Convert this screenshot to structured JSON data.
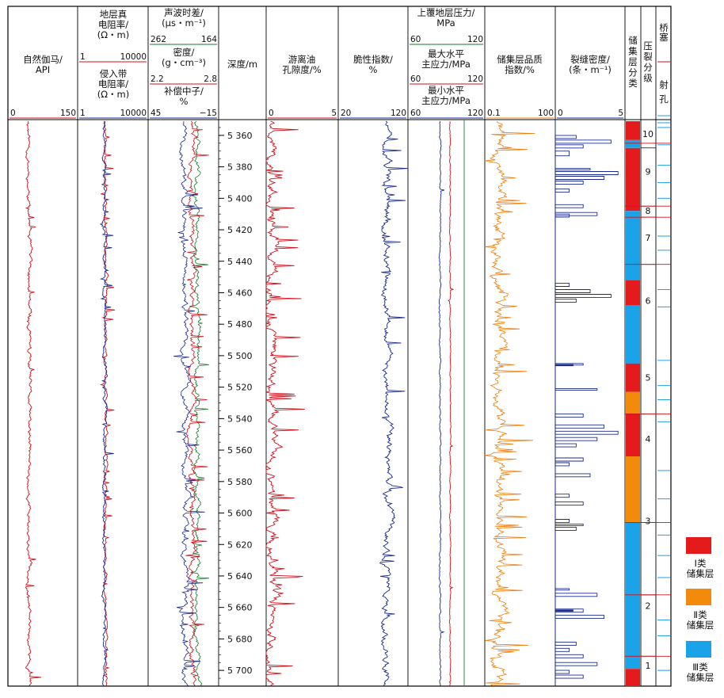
{
  "chart_data": {
    "type": "line",
    "depth_axis": {
      "label": "深度/m",
      "min": 5350,
      "max": 5710,
      "ticks": [
        5360,
        5380,
        5400,
        5420,
        5440,
        5460,
        5480,
        5500,
        5520,
        5540,
        5560,
        5580,
        5600,
        5620,
        5640,
        5660,
        5680,
        5700
      ],
      "tick_labels": [
        "5 360",
        "5 380",
        "5 400",
        "5 420",
        "5 440",
        "5 460",
        "5 480",
        "5 500",
        "5 520",
        "5 540",
        "5 560",
        "5 580",
        "5 600",
        "5 620",
        "5 640",
        "5 660",
        "5 680",
        "5 700"
      ]
    },
    "tracks": [
      {
        "title": [
          "自然伽马/",
          "API"
        ],
        "scale_min": "0",
        "scale_max": "150",
        "curve_color": "#d0101c"
      },
      {
        "title_top": [
          "地层真",
          "电阻率/",
          "(Ω・m)"
        ],
        "top_min": "1",
        "top_max": "10000",
        "title_bottom": [
          "侵入带",
          "电阻率/",
          "(Ω・m)"
        ],
        "bottom_min": "1",
        "bottom_max": "10000",
        "colors": [
          "#d0101c",
          "#1a2a8c"
        ]
      },
      {
        "title_1": [
          "声波时差/",
          "(μs・m⁻¹)"
        ],
        "s1_min": "262",
        "s1_max": "164",
        "title_2": [
          "密度/",
          "(g・cm⁻³)"
        ],
        "s2_min": "2.2",
        "s2_max": "2.8",
        "title_3": [
          "补偿中子/",
          "%"
        ],
        "s3_min": "45",
        "s3_max": "−15",
        "colors": [
          "#1a7a2a",
          "#d0101c",
          "#1a2a8c"
        ]
      },
      {
        "title": [
          "游离油",
          "孔隙度/%"
        ],
        "scale_min": "0",
        "scale_max": "5",
        "curve_color": "#d0101c"
      },
      {
        "title": [
          "脆性指数/",
          "%"
        ],
        "scale_min": "20",
        "scale_max": "120",
        "curve_color": "#1a2a8c"
      },
      {
        "title_1": [
          "上覆地层压力/",
          "MPa"
        ],
        "title_2": [
          "最大水平",
          "主应力/MPa"
        ],
        "title_3": [
          "最小水平",
          "主应力/MPa"
        ],
        "s1_min": "60",
        "s1_max": "120",
        "s2_min": "60",
        "s2_max": "120",
        "s3_min": "60",
        "s3_max": "120",
        "values_mpa": {
          "overburden": 120,
          "shmax": 108,
          "shmin": 95
        },
        "colors": [
          "#1a7a2a",
          "#d0101c",
          "#1a2a8c"
        ]
      },
      {
        "title": [
          "储集层品质",
          "指数/%"
        ],
        "scale_min": "0.1",
        "scale_max": "100",
        "curve_color": "#ef7d0a"
      },
      {
        "title": [
          "裂缝密度/",
          "(条・m⁻¹)"
        ],
        "scale_min": "0",
        "scale_max": "5",
        "curve_color": "#1a2a8c",
        "fracture_intervals": [
          [
            5360,
            5362,
            1.5
          ],
          [
            5363,
            5365,
            4
          ],
          [
            5366,
            5368,
            2
          ],
          [
            5370,
            5373,
            1
          ],
          [
            5381,
            5382,
            2.5
          ],
          [
            5383,
            5385,
            4.5
          ],
          [
            5386,
            5388,
            3.5
          ],
          [
            5389,
            5391,
            2
          ],
          [
            5394,
            5396,
            1
          ],
          [
            5404,
            5406,
            2
          ],
          [
            5409,
            5411,
            3
          ],
          [
            5410,
            5412,
            1
          ],
          [
            5454,
            5456,
            1
          ],
          [
            5458,
            5460,
            2.5
          ],
          [
            5461,
            5463,
            4
          ],
          [
            5464,
            5466,
            1.5
          ],
          [
            5505,
            5506,
            2
          ],
          [
            5521,
            5522,
            3
          ],
          [
            5537,
            5539,
            2
          ],
          [
            5544,
            5546,
            3.5
          ],
          [
            5548,
            5550,
            4.5
          ],
          [
            5552,
            5554,
            3
          ],
          [
            5556,
            5558,
            1.5
          ],
          [
            5565,
            5567,
            2
          ],
          [
            5568,
            5570,
            1
          ],
          [
            5575,
            5577,
            2.5
          ],
          [
            5588,
            5590,
            1
          ],
          [
            5593,
            5595,
            2
          ],
          [
            5604,
            5606,
            1
          ],
          [
            5607,
            5608,
            2
          ],
          [
            5609,
            5611,
            1.5
          ],
          [
            5648,
            5649,
            1
          ],
          [
            5651,
            5653,
            3
          ],
          [
            5661,
            5663,
            2
          ],
          [
            5665,
            5667,
            3.5
          ],
          [
            5682,
            5684,
            1.5
          ],
          [
            5686,
            5688,
            1
          ],
          [
            5690,
            5692,
            2
          ],
          [
            5695,
            5697,
            3
          ],
          [
            5700,
            5702,
            1
          ],
          [
            5703,
            5705,
            2
          ]
        ],
        "solid_markers": [
          5506,
          5662
        ]
      },
      {
        "title": "储集层分类",
        "segments": [
          [
            5351,
            5363,
            "I"
          ],
          [
            5363,
            5368,
            "III"
          ],
          [
            5368,
            5408,
            "I"
          ],
          [
            5408,
            5412,
            "III"
          ],
          [
            5412,
            5452,
            "III"
          ],
          [
            5452,
            5468,
            "I"
          ],
          [
            5468,
            5505,
            "III"
          ],
          [
            5505,
            5523,
            "I"
          ],
          [
            5523,
            5537,
            "II"
          ],
          [
            5537,
            5564,
            "I"
          ],
          [
            5564,
            5606,
            "II"
          ],
          [
            5606,
            5699,
            "III"
          ],
          [
            5699,
            5710,
            "I"
          ]
        ]
      },
      {
        "title": "压裂分级",
        "boundaries": [
          5368,
          5405,
          5412,
          5442,
          5537,
          5606,
          5652,
          5691
        ],
        "stages": [
          {
            "label": "10",
            "depth": 5359
          },
          {
            "label": "9",
            "depth": 5383
          },
          {
            "label": "8",
            "depth": 5408
          },
          {
            "label": "7",
            "depth": 5425
          },
          {
            "label": "6",
            "depth": 5465
          },
          {
            "label": "5",
            "depth": 5514
          },
          {
            "label": "4",
            "depth": 5553
          },
          {
            "label": "3",
            "depth": 5605
          },
          {
            "label": "2",
            "depth": 5659
          },
          {
            "label": "1",
            "depth": 5697
          }
        ]
      },
      {
        "title_1": "桥塞",
        "title_2": "射孔",
        "bridge_plugs": [
          5365,
          5405,
          5412,
          5442,
          5537,
          5606,
          5652,
          5691
        ],
        "perforations": [
          5352,
          5355,
          5366,
          5379,
          5390,
          5400,
          5424,
          5433,
          5458,
          5469,
          5503,
          5519,
          5528,
          5542,
          5573,
          5591,
          5614,
          5627,
          5641,
          5668,
          5678,
          5700
        ]
      }
    ],
    "legend": [
      {
        "label": [
          "Ⅰ类",
          "储集层"
        ],
        "color": "#e41a1c"
      },
      {
        "label": [
          "Ⅱ类",
          "储集层"
        ],
        "color": "#f28b0c"
      },
      {
        "label": [
          "Ⅲ类",
          "储集层"
        ],
        "color": "#1aa3e8"
      }
    ]
  }
}
